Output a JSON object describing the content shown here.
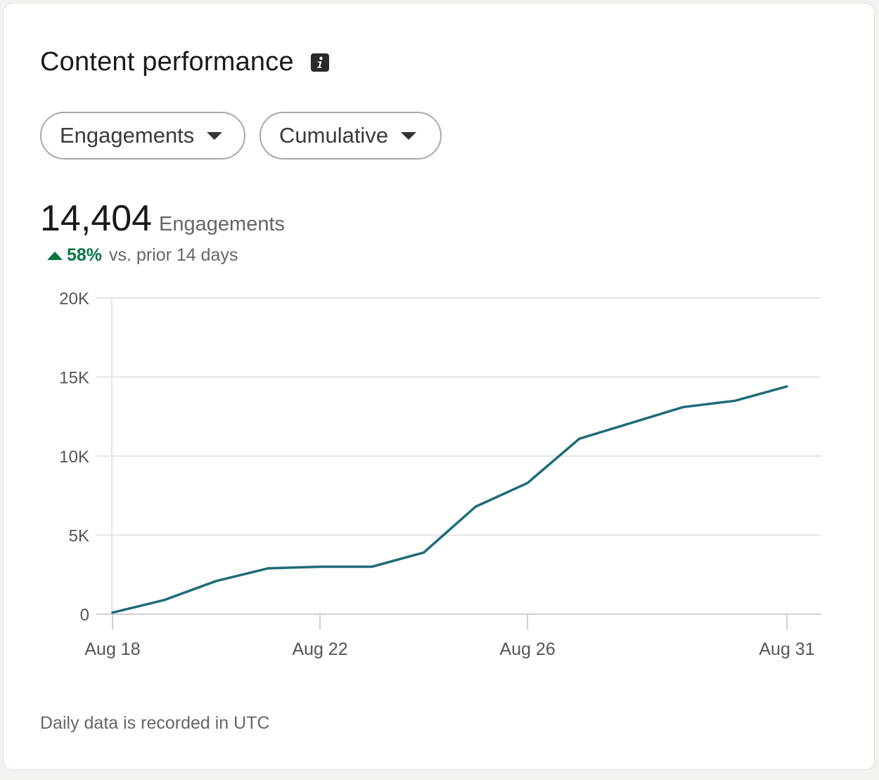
{
  "card": {
    "title": "Content performance",
    "info_icon": "info-icon"
  },
  "filters": {
    "metric_label": "Engagements",
    "mode_label": "Cumulative"
  },
  "summary": {
    "value": "14,404",
    "unit": "Engagements",
    "delta_pct": "58%",
    "delta_text": "vs. prior 14 days",
    "delta_direction": "up",
    "delta_color": "#057642"
  },
  "footnote": "Daily data is recorded in UTC",
  "colors": {
    "line": "#1e6b78",
    "grid": "#e4e4e4",
    "axis": "#cfcfcf"
  },
  "chart_data": {
    "type": "line",
    "title": "",
    "xlabel": "",
    "ylabel": "",
    "x": [
      "Aug 18",
      "Aug 19",
      "Aug 20",
      "Aug 21",
      "Aug 22",
      "Aug 23",
      "Aug 24",
      "Aug 25",
      "Aug 26",
      "Aug 27",
      "Aug 28",
      "Aug 29",
      "Aug 30",
      "Aug 31"
    ],
    "x_tick_labels": [
      "Aug 18",
      "Aug 22",
      "Aug 26",
      "Aug 31"
    ],
    "series": [
      {
        "values": [
          100,
          900,
          2100,
          2900,
          3000,
          3000,
          3900,
          6800,
          8300,
          11100,
          12100,
          13100,
          13500,
          14404
        ]
      }
    ],
    "y_ticks": [
      0,
      5000,
      10000,
      15000,
      20000
    ],
    "y_tick_labels": [
      "0",
      "5K",
      "10K",
      "15K",
      "20K"
    ],
    "ylim": [
      0,
      20000
    ],
    "grid": true,
    "legend": "none"
  }
}
